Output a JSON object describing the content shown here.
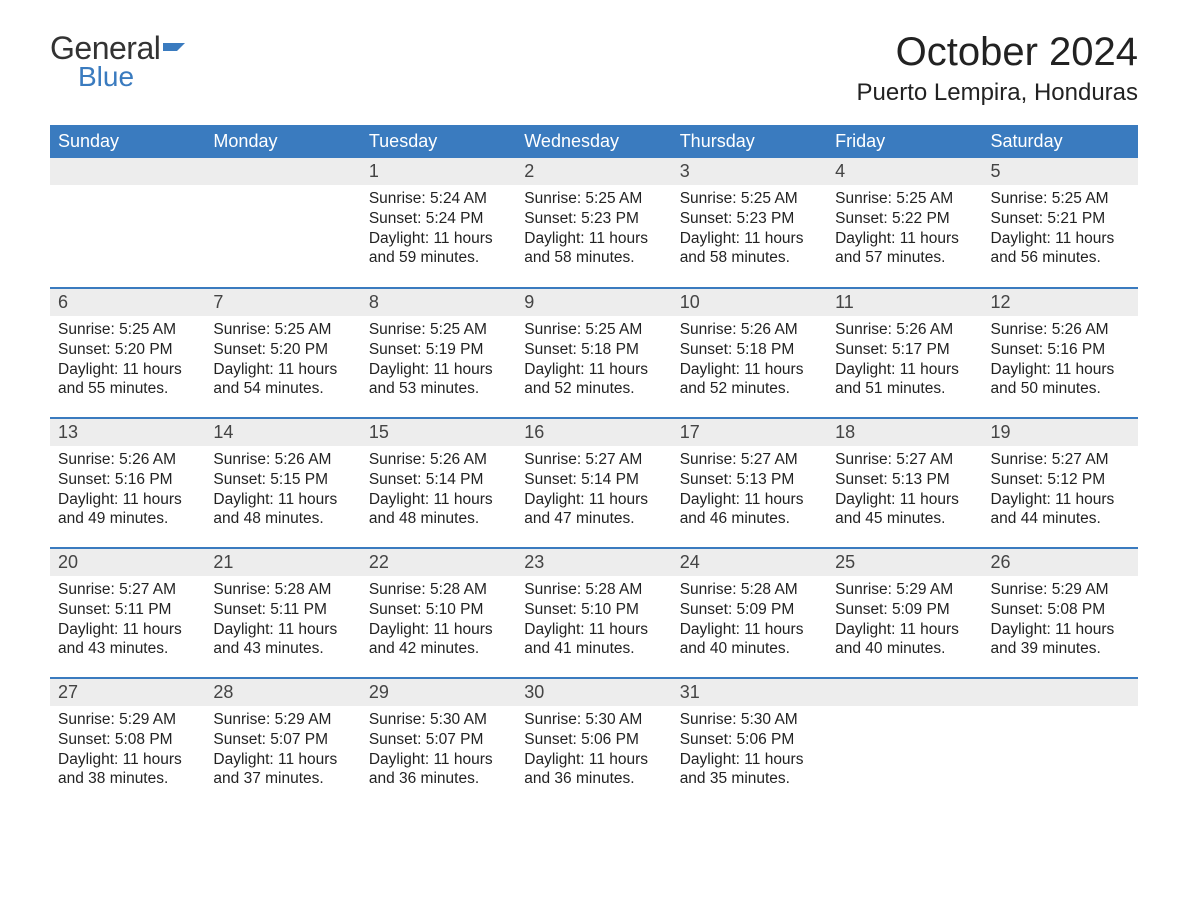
{
  "logo": {
    "general": "General",
    "blue": "Blue",
    "icon_color": "#3a7bbf"
  },
  "title": "October 2024",
  "location": "Puerto Lempira, Honduras",
  "colors": {
    "header_bg": "#3a7bbf",
    "header_text": "#ffffff",
    "daynum_bg": "#ededed",
    "row_border": "#3a7bbf",
    "text": "#222222",
    "background": "#ffffff"
  },
  "typography": {
    "title_fontsize": 40,
    "location_fontsize": 24,
    "header_fontsize": 18,
    "daynum_fontsize": 18,
    "body_fontsize": 15.5
  },
  "day_headers": [
    "Sunday",
    "Monday",
    "Tuesday",
    "Wednesday",
    "Thursday",
    "Friday",
    "Saturday"
  ],
  "weeks": [
    [
      null,
      null,
      {
        "n": "1",
        "sunrise": "5:24 AM",
        "sunset": "5:24 PM",
        "daylight": "11 hours and 59 minutes."
      },
      {
        "n": "2",
        "sunrise": "5:25 AM",
        "sunset": "5:23 PM",
        "daylight": "11 hours and 58 minutes."
      },
      {
        "n": "3",
        "sunrise": "5:25 AM",
        "sunset": "5:23 PM",
        "daylight": "11 hours and 58 minutes."
      },
      {
        "n": "4",
        "sunrise": "5:25 AM",
        "sunset": "5:22 PM",
        "daylight": "11 hours and 57 minutes."
      },
      {
        "n": "5",
        "sunrise": "5:25 AM",
        "sunset": "5:21 PM",
        "daylight": "11 hours and 56 minutes."
      }
    ],
    [
      {
        "n": "6",
        "sunrise": "5:25 AM",
        "sunset": "5:20 PM",
        "daylight": "11 hours and 55 minutes."
      },
      {
        "n": "7",
        "sunrise": "5:25 AM",
        "sunset": "5:20 PM",
        "daylight": "11 hours and 54 minutes."
      },
      {
        "n": "8",
        "sunrise": "5:25 AM",
        "sunset": "5:19 PM",
        "daylight": "11 hours and 53 minutes."
      },
      {
        "n": "9",
        "sunrise": "5:25 AM",
        "sunset": "5:18 PM",
        "daylight": "11 hours and 52 minutes."
      },
      {
        "n": "10",
        "sunrise": "5:26 AM",
        "sunset": "5:18 PM",
        "daylight": "11 hours and 52 minutes."
      },
      {
        "n": "11",
        "sunrise": "5:26 AM",
        "sunset": "5:17 PM",
        "daylight": "11 hours and 51 minutes."
      },
      {
        "n": "12",
        "sunrise": "5:26 AM",
        "sunset": "5:16 PM",
        "daylight": "11 hours and 50 minutes."
      }
    ],
    [
      {
        "n": "13",
        "sunrise": "5:26 AM",
        "sunset": "5:16 PM",
        "daylight": "11 hours and 49 minutes."
      },
      {
        "n": "14",
        "sunrise": "5:26 AM",
        "sunset": "5:15 PM",
        "daylight": "11 hours and 48 minutes."
      },
      {
        "n": "15",
        "sunrise": "5:26 AM",
        "sunset": "5:14 PM",
        "daylight": "11 hours and 48 minutes."
      },
      {
        "n": "16",
        "sunrise": "5:27 AM",
        "sunset": "5:14 PM",
        "daylight": "11 hours and 47 minutes."
      },
      {
        "n": "17",
        "sunrise": "5:27 AM",
        "sunset": "5:13 PM",
        "daylight": "11 hours and 46 minutes."
      },
      {
        "n": "18",
        "sunrise": "5:27 AM",
        "sunset": "5:13 PM",
        "daylight": "11 hours and 45 minutes."
      },
      {
        "n": "19",
        "sunrise": "5:27 AM",
        "sunset": "5:12 PM",
        "daylight": "11 hours and 44 minutes."
      }
    ],
    [
      {
        "n": "20",
        "sunrise": "5:27 AM",
        "sunset": "5:11 PM",
        "daylight": "11 hours and 43 minutes."
      },
      {
        "n": "21",
        "sunrise": "5:28 AM",
        "sunset": "5:11 PM",
        "daylight": "11 hours and 43 minutes."
      },
      {
        "n": "22",
        "sunrise": "5:28 AM",
        "sunset": "5:10 PM",
        "daylight": "11 hours and 42 minutes."
      },
      {
        "n": "23",
        "sunrise": "5:28 AM",
        "sunset": "5:10 PM",
        "daylight": "11 hours and 41 minutes."
      },
      {
        "n": "24",
        "sunrise": "5:28 AM",
        "sunset": "5:09 PM",
        "daylight": "11 hours and 40 minutes."
      },
      {
        "n": "25",
        "sunrise": "5:29 AM",
        "sunset": "5:09 PM",
        "daylight": "11 hours and 40 minutes."
      },
      {
        "n": "26",
        "sunrise": "5:29 AM",
        "sunset": "5:08 PM",
        "daylight": "11 hours and 39 minutes."
      }
    ],
    [
      {
        "n": "27",
        "sunrise": "5:29 AM",
        "sunset": "5:08 PM",
        "daylight": "11 hours and 38 minutes."
      },
      {
        "n": "28",
        "sunrise": "5:29 AM",
        "sunset": "5:07 PM",
        "daylight": "11 hours and 37 minutes."
      },
      {
        "n": "29",
        "sunrise": "5:30 AM",
        "sunset": "5:07 PM",
        "daylight": "11 hours and 36 minutes."
      },
      {
        "n": "30",
        "sunrise": "5:30 AM",
        "sunset": "5:06 PM",
        "daylight": "11 hours and 36 minutes."
      },
      {
        "n": "31",
        "sunrise": "5:30 AM",
        "sunset": "5:06 PM",
        "daylight": "11 hours and 35 minutes."
      },
      null,
      null
    ]
  ],
  "labels": {
    "sunrise": "Sunrise: ",
    "sunset": "Sunset: ",
    "daylight": "Daylight: "
  }
}
